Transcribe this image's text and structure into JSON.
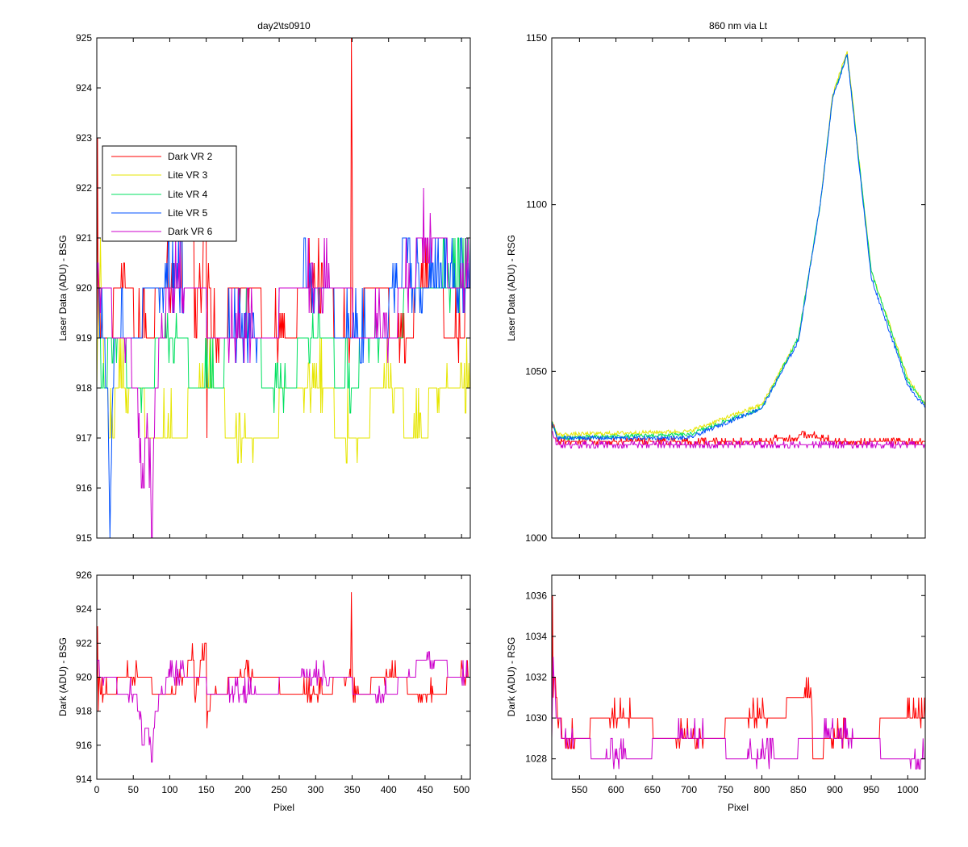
{
  "colors": {
    "Dark VR 2": "#ff0000",
    "Lite VR 3": "#e6e600",
    "Lite VR 4": "#00e060",
    "Lite VR 5": "#0050ff",
    "Dark VR 6": "#cc00cc"
  },
  "chart_data": [
    {
      "id": "laser_bsg",
      "type": "line",
      "title": "day2\\ts0910",
      "xlabel": "",
      "ylabel": "Laser Data (ADU) - BSG",
      "xlim": [
        0,
        512
      ],
      "ylim": [
        915,
        925
      ],
      "xticks": [
        0,
        50,
        100,
        150,
        200,
        250,
        300,
        350,
        400,
        450,
        500
      ],
      "show_xticklabels": false,
      "yticks": [
        915,
        916,
        917,
        918,
        919,
        920,
        921,
        922,
        923,
        924,
        925
      ],
      "legend": {
        "placement": "upper-left",
        "entries": [
          "Dark VR 2",
          "Lite VR 3",
          "Lite VR 4",
          "Lite VR 5",
          "Dark VR 6"
        ]
      },
      "series": [
        {
          "name": "Dark VR 2",
          "base": 919,
          "values": [
            [
              0,
              919
            ],
            [
              1,
              923
            ],
            [
              2,
              919
            ],
            [
              3,
              920
            ],
            [
              5,
              919
            ],
            [
              40,
              920
            ],
            [
              60,
              919
            ],
            [
              100,
              920
            ],
            [
              133,
              921
            ],
            [
              134,
              919
            ],
            [
              150,
              921
            ],
            [
              151,
              917
            ],
            [
              152,
              920
            ],
            [
              160,
              919
            ],
            [
              200,
              920
            ],
            [
              250,
              919
            ],
            [
              300,
              920
            ],
            [
              348,
              919
            ],
            [
              349,
              925
            ],
            [
              350,
              922.5
            ],
            [
              351,
              919
            ],
            [
              380,
              920
            ],
            [
              420,
              919
            ],
            [
              450,
              920
            ],
            [
              500,
              919
            ],
            [
              510,
              920
            ]
          ]
        },
        {
          "name": "Lite VR 3",
          "base": 917.5,
          "values": [
            [
              0,
              918
            ],
            [
              5,
              921
            ],
            [
              10,
              918
            ],
            [
              20,
              917
            ],
            [
              30,
              918
            ],
            [
              100,
              917
            ],
            [
              150,
              918
            ],
            [
              200,
              917
            ],
            [
              300,
              918
            ],
            [
              350,
              917
            ],
            [
              400,
              918
            ],
            [
              440,
              917
            ],
            [
              470,
              918
            ],
            [
              480,
              918.5
            ],
            [
              511,
              918
            ]
          ]
        },
        {
          "name": "Lite VR 4",
          "base": 919,
          "values": [
            [
              0,
              919
            ],
            [
              10,
              918
            ],
            [
              20,
              919
            ],
            [
              60,
              918
            ],
            [
              100,
              919
            ],
            [
              150,
              918
            ],
            [
              200,
              919
            ],
            [
              250,
              918
            ],
            [
              300,
              919
            ],
            [
              350,
              918
            ],
            [
              370,
              919
            ],
            [
              420,
              919.5
            ],
            [
              511,
              920
            ]
          ]
        },
        {
          "name": "Lite VR 5",
          "base": 919.5,
          "values": [
            [
              0,
              920
            ],
            [
              15,
              918
            ],
            [
              18,
              915
            ],
            [
              20,
              916.5
            ],
            [
              25,
              919
            ],
            [
              100,
              920
            ],
            [
              200,
              919
            ],
            [
              300,
              920
            ],
            [
              350,
              919
            ],
            [
              400,
              919.5
            ],
            [
              428,
              921
            ],
            [
              430,
              920
            ],
            [
              511,
              920
            ]
          ]
        },
        {
          "name": "Dark VR 6",
          "base": 919.5,
          "values": [
            [
              0,
              920
            ],
            [
              40,
              919
            ],
            [
              55,
              918
            ],
            [
              62,
              916
            ],
            [
              70,
              917
            ],
            [
              76,
              915
            ],
            [
              80,
              918
            ],
            [
              100,
              920
            ],
            [
              200,
              919
            ],
            [
              300,
              920
            ],
            [
              400,
              919
            ],
            [
              450,
              921
            ],
            [
              511,
              920
            ]
          ]
        }
      ]
    },
    {
      "id": "laser_rsg",
      "type": "line",
      "title": "860 nm via Lt",
      "xlabel": "",
      "ylabel": "Laser Data (ADU) - RSG",
      "xlim": [
        512,
        1024
      ],
      "ylim": [
        1000,
        1150
      ],
      "xticks": [
        550,
        600,
        650,
        700,
        750,
        800,
        850,
        900,
        950,
        1000
      ],
      "show_xticklabels": false,
      "yticks": [
        1000,
        1050,
        1100,
        1150
      ],
      "peak": {
        "lite_peak_x": 917,
        "lite_peak_y": 1146,
        "lite_base_y": 1030,
        "dark_base_y": 1029,
        "end_y": 1040
      },
      "series": [
        {
          "name": "Dark VR 2",
          "values": [
            [
              512,
              1035
            ],
            [
              520,
              1029
            ],
            [
              600,
              1029
            ],
            [
              700,
              1029
            ],
            [
              800,
              1029
            ],
            [
              868,
              1031
            ],
            [
              900,
              1029
            ],
            [
              1024,
              1029
            ]
          ]
        },
        {
          "name": "Lite VR 3",
          "values": [
            [
              512,
              1035
            ],
            [
              520,
              1031
            ],
            [
              700,
              1032
            ],
            [
              800,
              1040
            ],
            [
              850,
              1060
            ],
            [
              880,
              1100
            ],
            [
              897,
              1133
            ],
            [
              917,
              1146
            ],
            [
              950,
              1080
            ],
            [
              1000,
              1048
            ],
            [
              1024,
              1040
            ]
          ]
        },
        {
          "name": "Lite VR 4",
          "values": [
            [
              512,
              1035
            ],
            [
              520,
              1030
            ],
            [
              700,
              1031
            ],
            [
              800,
              1039
            ],
            [
              850,
              1060
            ],
            [
              880,
              1100
            ],
            [
              897,
              1132
            ],
            [
              917,
              1145
            ],
            [
              950,
              1080
            ],
            [
              1000,
              1047
            ],
            [
              1024,
              1040
            ]
          ]
        },
        {
          "name": "Lite VR 5",
          "values": [
            [
              512,
              1035
            ],
            [
              520,
              1030
            ],
            [
              700,
              1030
            ],
            [
              800,
              1039
            ],
            [
              850,
              1059
            ],
            [
              880,
              1100
            ],
            [
              897,
              1132
            ],
            [
              917,
              1145
            ],
            [
              950,
              1078
            ],
            [
              1000,
              1046
            ],
            [
              1024,
              1039
            ]
          ]
        },
        {
          "name": "Dark VR 6",
          "values": [
            [
              512,
              1032
            ],
            [
              520,
              1028
            ],
            [
              600,
              1028
            ],
            [
              700,
              1028
            ],
            [
              800,
              1028
            ],
            [
              900,
              1028
            ],
            [
              1024,
              1028
            ]
          ]
        }
      ]
    },
    {
      "id": "dark_bsg",
      "type": "line",
      "title": "",
      "xlabel": "Pixel",
      "ylabel": "Dark (ADU) - BSG",
      "xlim": [
        0,
        512
      ],
      "ylim": [
        914,
        926
      ],
      "xticks": [
        0,
        50,
        100,
        150,
        200,
        250,
        300,
        350,
        400,
        450,
        500
      ],
      "show_xticklabels": true,
      "yticks": [
        914,
        916,
        918,
        920,
        922,
        924,
        926
      ],
      "series": [
        {
          "name": "Dark VR 2",
          "values": [
            [
              0,
              919
            ],
            [
              1,
              923
            ],
            [
              2,
              918
            ],
            [
              3,
              920
            ],
            [
              5,
              919
            ],
            [
              50,
              920
            ],
            [
              100,
              919
            ],
            [
              133,
              921
            ],
            [
              134,
              919
            ],
            [
              150,
              922
            ],
            [
              151,
              917
            ],
            [
              152,
              918
            ],
            [
              160,
              919
            ],
            [
              200,
              920
            ],
            [
              300,
              919
            ],
            [
              348,
              920
            ],
            [
              349,
              925
            ],
            [
              350,
              921
            ],
            [
              351,
              919
            ],
            [
              400,
              920
            ],
            [
              450,
              919
            ],
            [
              510,
              920
            ]
          ]
        },
        {
          "name": "Dark VR 6",
          "values": [
            [
              0,
              920
            ],
            [
              2,
              921
            ],
            [
              5,
              920
            ],
            [
              50,
              919
            ],
            [
              60,
              918
            ],
            [
              62,
              916
            ],
            [
              70,
              917
            ],
            [
              76,
              915
            ],
            [
              80,
              918
            ],
            [
              100,
              920
            ],
            [
              200,
              919
            ],
            [
              300,
              920
            ],
            [
              400,
              919
            ],
            [
              450,
              921
            ],
            [
              511,
              920
            ]
          ]
        }
      ]
    },
    {
      "id": "dark_rsg",
      "type": "line",
      "title": "",
      "xlabel": "Pixel",
      "ylabel": "Dark (ADU) - RSG",
      "xlim": [
        512,
        1024
      ],
      "ylim": [
        1027,
        1037
      ],
      "xticks": [
        550,
        600,
        650,
        700,
        750,
        800,
        850,
        900,
        950,
        1000
      ],
      "show_xticklabels": true,
      "yticks": [
        1028,
        1030,
        1032,
        1034,
        1036
      ],
      "series": [
        {
          "name": "Dark VR 2",
          "values": [
            [
              512,
              1029
            ],
            [
              513,
              1036
            ],
            [
              514,
              1031
            ],
            [
              516,
              1032
            ],
            [
              520,
              1030
            ],
            [
              530,
              1029
            ],
            [
              600,
              1030
            ],
            [
              700,
              1029
            ],
            [
              800,
              1030
            ],
            [
              868,
              1031
            ],
            [
              870,
              1028
            ],
            [
              900,
              1029
            ],
            [
              1024,
              1030
            ]
          ]
        },
        {
          "name": "Dark VR 6",
          "values": [
            [
              512,
              1029
            ],
            [
              514,
              1033
            ],
            [
              518,
              1030
            ],
            [
              530,
              1029
            ],
            [
              600,
              1028
            ],
            [
              700,
              1029
            ],
            [
              800,
              1028
            ],
            [
              900,
              1029
            ],
            [
              1024,
              1028
            ]
          ]
        }
      ]
    }
  ]
}
